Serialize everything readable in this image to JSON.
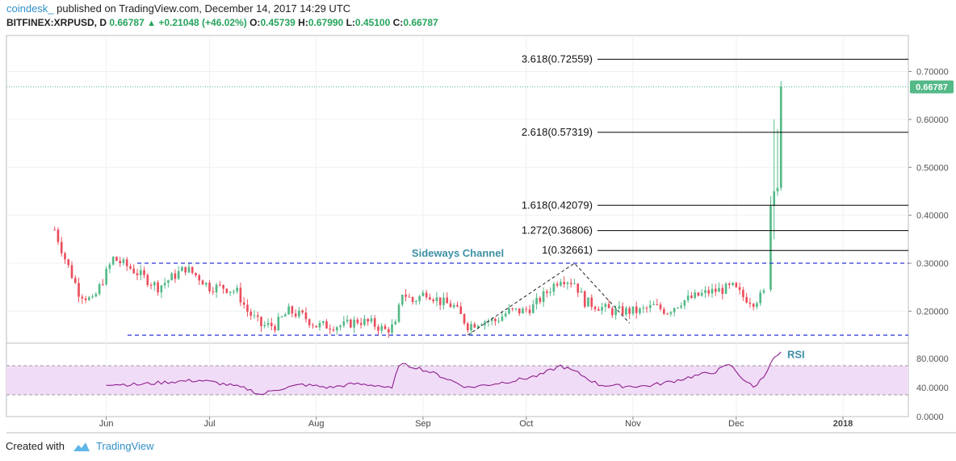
{
  "header": {
    "author": "coindesk_",
    "published": "published on TradingView.com, December 14, 2017 14:29 UTC",
    "symbol": "BITFINEX:XRPUSD, D",
    "last": "0.66787",
    "change": "+0.21048 (+46.02%)",
    "o_label": "O:",
    "o": "0.45739",
    "h_label": "H:",
    "h": "0.67990",
    "l_label": "L:",
    "l": "0.45100",
    "c_label": "C:",
    "c": "0.66787"
  },
  "footer": {
    "created": "Created with",
    "brand": "TradingView"
  },
  "colors": {
    "up": "#53b987",
    "down": "#eb4d5c",
    "fib": "#000000",
    "channel": "#2b34d6",
    "rsi_line": "#8e1f8e",
    "rsi_band": "#f1dcf7",
    "last_badge": "#53b987",
    "annotation": "#3d8fa6",
    "grid": "#eef0f3",
    "axis_text": "#555555"
  },
  "chart_data": {
    "type": "candlestick",
    "price_axis": {
      "ylim": [
        0.135,
        0.775
      ],
      "ticks": [
        "0.70000",
        "0.60000",
        "0.50000",
        "0.40000",
        "0.30000",
        "0.20000"
      ]
    },
    "rsi_axis": {
      "ylim": [
        0,
        100
      ],
      "ticks": [
        "80.0000",
        "40.0000",
        "0.0000"
      ]
    },
    "x_range": [
      "2017-05-03",
      "2018-01-20"
    ],
    "x_ticks": [
      {
        "date": "2017-06-01",
        "label": "Jun",
        "bold": false
      },
      {
        "date": "2017-07-01",
        "label": "Jul",
        "bold": false
      },
      {
        "date": "2017-08-01",
        "label": "Aug",
        "bold": false
      },
      {
        "date": "2017-09-01",
        "label": "Sep",
        "bold": false
      },
      {
        "date": "2017-10-01",
        "label": "Oct",
        "bold": false
      },
      {
        "date": "2017-11-01",
        "label": "Nov",
        "bold": false
      },
      {
        "date": "2017-12-01",
        "label": "Dec",
        "bold": false
      },
      {
        "date": "2018-01-01",
        "label": "2018",
        "bold": true
      }
    ],
    "last_price": "0.66787",
    "fib_levels": [
      {
        "label": "3.618(0.72559)",
        "value": 0.72559
      },
      {
        "label": "2.618(0.57319)",
        "value": 0.57319
      },
      {
        "label": "1.618(0.42079)",
        "value": 0.42079
      },
      {
        "label": "1.272(0.36806)",
        "value": 0.36806
      },
      {
        "label": "1(0.32661)",
        "value": 0.32661
      }
    ],
    "channel": {
      "label": "Sideways Channel",
      "upper": 0.3,
      "lower": 0.15,
      "start": "2017-06-10",
      "end": "2018-01-20"
    },
    "triangle": [
      {
        "date": "2017-09-14",
        "value": 0.15
      },
      {
        "date": "2017-10-15",
        "value": 0.3
      },
      {
        "date": "2017-10-31",
        "value": 0.175
      }
    ],
    "rsi_label": "RSI",
    "rsi_band": [
      30,
      70
    ],
    "price_keypoints": [
      [
        "2017-05-17",
        0.37
      ],
      [
        "2017-05-20",
        0.31
      ],
      [
        "2017-05-24",
        0.24
      ],
      [
        "2017-05-28",
        0.22
      ],
      [
        "2017-06-01",
        0.28
      ],
      [
        "2017-06-03",
        0.31
      ],
      [
        "2017-06-08",
        0.29
      ],
      [
        "2017-06-12",
        0.27
      ],
      [
        "2017-06-16",
        0.25
      ],
      [
        "2017-06-20",
        0.27
      ],
      [
        "2017-06-24",
        0.29
      ],
      [
        "2017-06-28",
        0.27
      ],
      [
        "2017-07-01",
        0.25
      ],
      [
        "2017-07-05",
        0.25
      ],
      [
        "2017-07-09",
        0.24
      ],
      [
        "2017-07-12",
        0.2
      ],
      [
        "2017-07-16",
        0.17
      ],
      [
        "2017-07-20",
        0.17
      ],
      [
        "2017-07-24",
        0.2
      ],
      [
        "2017-07-28",
        0.19
      ],
      [
        "2017-08-01",
        0.17
      ],
      [
        "2017-08-05",
        0.17
      ],
      [
        "2017-08-09",
        0.17
      ],
      [
        "2017-08-13",
        0.18
      ],
      [
        "2017-08-17",
        0.175
      ],
      [
        "2017-08-21",
        0.16
      ],
      [
        "2017-08-24",
        0.17
      ],
      [
        "2017-08-26",
        0.24
      ],
      [
        "2017-08-29",
        0.22
      ],
      [
        "2017-09-02",
        0.24
      ],
      [
        "2017-09-06",
        0.22
      ],
      [
        "2017-09-10",
        0.21
      ],
      [
        "2017-09-14",
        0.17
      ],
      [
        "2017-09-18",
        0.18
      ],
      [
        "2017-09-22",
        0.18
      ],
      [
        "2017-09-26",
        0.2
      ],
      [
        "2017-09-30",
        0.2
      ],
      [
        "2017-10-03",
        0.21
      ],
      [
        "2017-10-07",
        0.24
      ],
      [
        "2017-10-11",
        0.27
      ],
      [
        "2017-10-15",
        0.26
      ],
      [
        "2017-10-18",
        0.22
      ],
      [
        "2017-10-22",
        0.21
      ],
      [
        "2017-10-26",
        0.2
      ],
      [
        "2017-10-30",
        0.2
      ],
      [
        "2017-11-03",
        0.2
      ],
      [
        "2017-11-07",
        0.21
      ],
      [
        "2017-11-11",
        0.2
      ],
      [
        "2017-11-15",
        0.22
      ],
      [
        "2017-11-19",
        0.23
      ],
      [
        "2017-11-23",
        0.24
      ],
      [
        "2017-11-27",
        0.245
      ],
      [
        "2017-11-30",
        0.25
      ],
      [
        "2017-12-03",
        0.23
      ],
      [
        "2017-12-06",
        0.22
      ],
      [
        "2017-12-08",
        0.23
      ],
      [
        "2017-12-10",
        0.245
      ]
    ],
    "final_candles": [
      {
        "date": "2017-12-11",
        "o": 0.245,
        "h": 0.44,
        "l": 0.24,
        "c": 0.42
      },
      {
        "date": "2017-12-12",
        "o": 0.42,
        "h": 0.6,
        "l": 0.35,
        "c": 0.45
      },
      {
        "date": "2017-12-13",
        "o": 0.45,
        "h": 0.58,
        "l": 0.44,
        "c": 0.45739
      },
      {
        "date": "2017-12-14",
        "o": 0.45739,
        "h": 0.6799,
        "l": 0.451,
        "c": 0.66787
      }
    ],
    "rsi_keypoints": [
      [
        "2017-06-01",
        45
      ],
      [
        "2017-06-10",
        44
      ],
      [
        "2017-06-20",
        48
      ],
      [
        "2017-06-28",
        50
      ],
      [
        "2017-07-05",
        45
      ],
      [
        "2017-07-12",
        38
      ],
      [
        "2017-07-16",
        30
      ],
      [
        "2017-07-20",
        37
      ],
      [
        "2017-07-28",
        44
      ],
      [
        "2017-08-05",
        40
      ],
      [
        "2017-08-12",
        45
      ],
      [
        "2017-08-19",
        43
      ],
      [
        "2017-08-23",
        38
      ],
      [
        "2017-08-25",
        72
      ],
      [
        "2017-08-30",
        68
      ],
      [
        "2017-09-05",
        58
      ],
      [
        "2017-09-10",
        48
      ],
      [
        "2017-09-14",
        40
      ],
      [
        "2017-09-20",
        44
      ],
      [
        "2017-09-28",
        50
      ],
      [
        "2017-10-05",
        57
      ],
      [
        "2017-10-11",
        70
      ],
      [
        "2017-10-16",
        60
      ],
      [
        "2017-10-22",
        44
      ],
      [
        "2017-10-28",
        42
      ],
      [
        "2017-11-05",
        42
      ],
      [
        "2017-11-12",
        48
      ],
      [
        "2017-11-18",
        55
      ],
      [
        "2017-11-25",
        62
      ],
      [
        "2017-11-29",
        72
      ],
      [
        "2017-12-03",
        52
      ],
      [
        "2017-12-06",
        40
      ],
      [
        "2017-12-09",
        55
      ],
      [
        "2017-12-11",
        75
      ],
      [
        "2017-12-14",
        89
      ]
    ]
  }
}
